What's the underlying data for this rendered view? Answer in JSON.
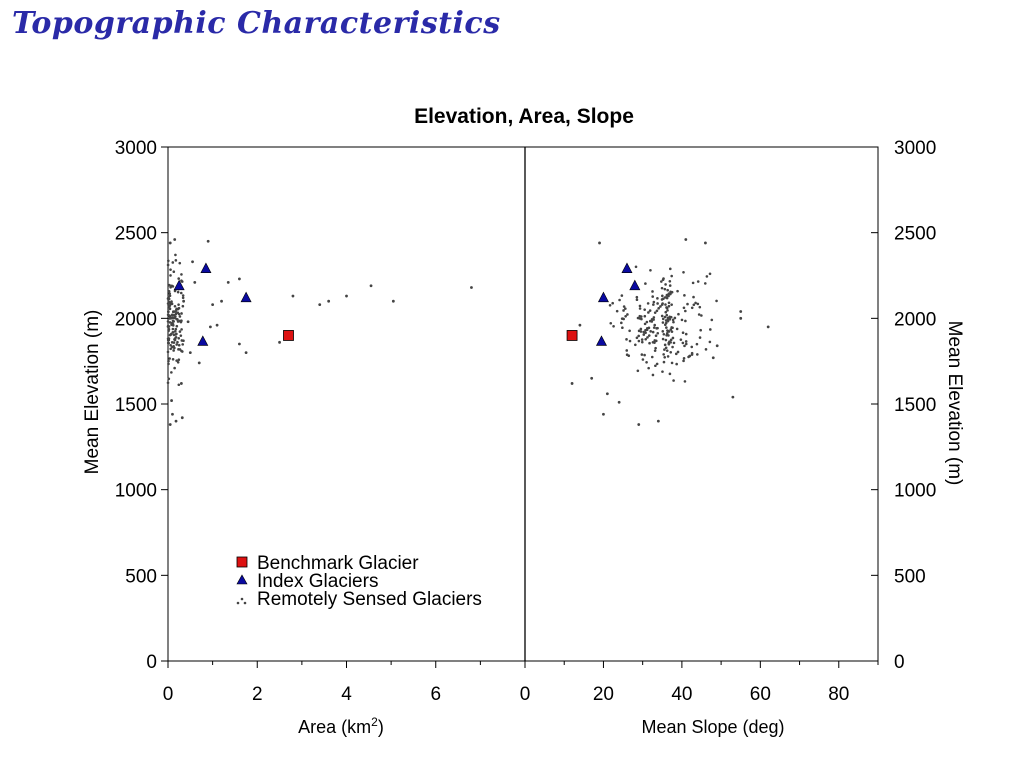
{
  "slide": {
    "title": "Topographic Characteristics"
  },
  "chart_data": {
    "type": "scatter",
    "title": "Elevation, Area, Slope",
    "y_label_left": "Mean Elevation (m)",
    "y_label_right": "Mean Elevation (m)",
    "ylim": [
      0,
      3000
    ],
    "y_ticks": [
      "0",
      "500",
      "1000",
      "1500",
      "2000",
      "2500",
      "3000"
    ],
    "grid": false,
    "legend_position": "lower-left of left panel",
    "panels": [
      {
        "id": "area",
        "xlabel": "Area (km",
        "xlabel_sup": "2",
        "xlabel_end": ")",
        "xlim": [
          0,
          8
        ],
        "x_ticks": [
          "0",
          "2",
          "4",
          "6"
        ],
        "series": [
          {
            "name": "Benchmark Glacier",
            "marker": "square",
            "color": "#dd1111",
            "points": [
              [
                2.7,
                1900
              ]
            ]
          },
          {
            "name": "Index Glaciers",
            "marker": "triangle",
            "color": "#0a0aa0",
            "points": [
              [
                0.85,
                2290
              ],
              [
                0.25,
                2190
              ],
              [
                1.75,
                2120
              ],
              [
                0.78,
                1865
              ]
            ]
          },
          {
            "name": "Remotely Sensed Glaciers",
            "marker": "dot",
            "color": "#444444",
            "points": [
              [
                0.05,
                2440
              ],
              [
                0.15,
                2460
              ],
              [
                0.9,
                2450
              ],
              [
                1.6,
                2230
              ],
              [
                1.35,
                2210
              ],
              [
                1.2,
                2100
              ],
              [
                1.0,
                2080
              ],
              [
                0.55,
                2330
              ],
              [
                0.35,
                2100
              ],
              [
                0.45,
                1980
              ],
              [
                0.7,
                1740
              ],
              [
                0.95,
                1950
              ],
              [
                1.1,
                1960
              ],
              [
                1.6,
                1850
              ],
              [
                1.75,
                1800
              ],
              [
                2.5,
                1860
              ],
              [
                2.8,
                2130
              ],
              [
                3.4,
                2080
              ],
              [
                3.6,
                2100
              ],
              [
                4.0,
                2130
              ],
              [
                4.55,
                2190
              ],
              [
                5.05,
                2100
              ],
              [
                6.8,
                2180
              ],
              [
                0.1,
                1440
              ],
              [
                0.05,
                1380
              ],
              [
                0.18,
                1400
              ],
              [
                0.32,
                1420
              ],
              [
                0.3,
                1620
              ],
              [
                0.6,
                2210
              ],
              [
                0.5,
                1800
              ],
              [
                0.08,
                1520
              ]
            ]
          }
        ],
        "dense_cluster": {
          "x_range": [
            0.0,
            0.35
          ],
          "y_range": [
            1560,
            2420
          ],
          "count": 150
        }
      },
      {
        "id": "slope",
        "xlabel": "Mean Slope (deg)",
        "xlim": [
          0,
          90
        ],
        "x_ticks": [
          "0",
          "20",
          "40",
          "60",
          "80"
        ],
        "series": [
          {
            "name": "Benchmark Glacier",
            "marker": "square",
            "color": "#dd1111",
            "points": [
              [
                12,
                1900
              ]
            ]
          },
          {
            "name": "Index Glaciers",
            "marker": "triangle",
            "color": "#0a0aa0",
            "points": [
              [
                26,
                2290
              ],
              [
                28,
                2190
              ],
              [
                20,
                2120
              ],
              [
                19.5,
                1865
              ]
            ]
          },
          {
            "name": "Remotely Sensed Glaciers",
            "marker": "dot",
            "color": "#444444",
            "points": [
              [
                19,
                2440
              ],
              [
                46,
                2440
              ],
              [
                41,
                2460
              ],
              [
                62,
                1950
              ],
              [
                55,
                2000
              ],
              [
                55,
                2040
              ],
              [
                12,
                1620
              ],
              [
                20,
                1440
              ],
              [
                29,
                1380
              ],
              [
                34,
                1400
              ],
              [
                53,
                1540
              ],
              [
                24,
                1510
              ],
              [
                21,
                1560
              ],
              [
                17,
                1650
              ],
              [
                14,
                1960
              ],
              [
                48,
                1770
              ],
              [
                42,
                1780
              ],
              [
                49,
                1840
              ]
            ]
          }
        ],
        "dense_cluster": {
          "x_range": [
            17,
            52
          ],
          "y_range": [
            1560,
            2400
          ],
          "count": 240
        }
      }
    ]
  }
}
